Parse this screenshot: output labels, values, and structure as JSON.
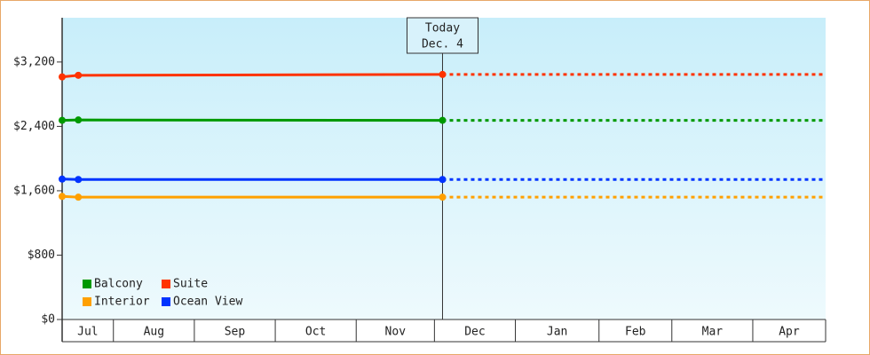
{
  "chart_data": {
    "type": "line",
    "x": [
      0,
      6,
      141
    ],
    "xlim": [
      0,
      283
    ],
    "xticks": [
      0,
      19,
      49,
      79,
      109,
      138,
      168,
      199,
      226,
      256,
      283
    ],
    "categories": [
      "Jul",
      "Aug",
      "Sep",
      "Oct",
      "Nov",
      "Dec",
      "Jan",
      "Feb",
      "Mar",
      "Apr"
    ],
    "ylim": [
      0,
      3750
    ],
    "yticks": [
      {
        "value": 0,
        "label": "$0"
      },
      {
        "value": 800,
        "label": "$800"
      },
      {
        "value": 1600,
        "label": "$1,600"
      },
      {
        "value": 2400,
        "label": "$2,400"
      },
      {
        "value": 3200,
        "label": "$3,200"
      }
    ],
    "today": {
      "x": 141,
      "label": [
        "Today",
        "Dec. 4"
      ]
    },
    "legend": "lower left",
    "series": [
      {
        "name": "Balcony",
        "color": "#009900",
        "values": [
          2475,
          2480,
          2475
        ]
      },
      {
        "name": "Suite",
        "color": "#ff3300",
        "values": [
          3015,
          3035,
          3045
        ]
      },
      {
        "name": "Interior",
        "color": "#ffa000",
        "values": [
          1530,
          1520,
          1520
        ]
      },
      {
        "name": "Ocean View",
        "color": "#0033ff",
        "values": [
          1745,
          1740,
          1740
        ]
      }
    ]
  }
}
